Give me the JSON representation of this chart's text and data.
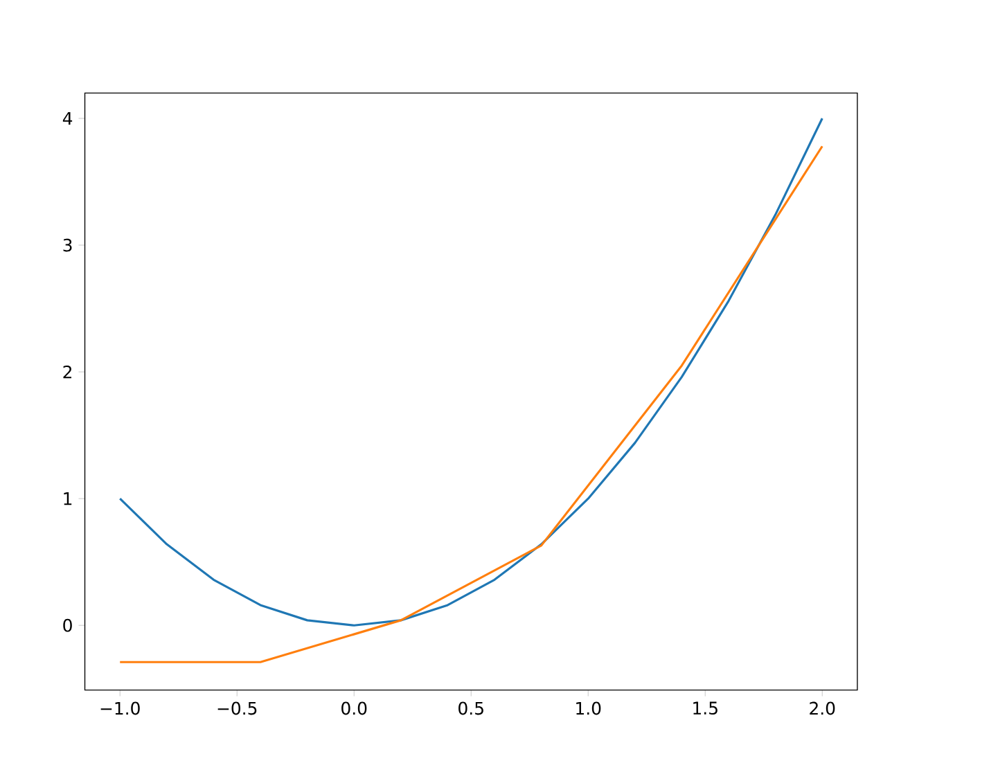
{
  "chart_data": {
    "type": "line",
    "xlim": [
      -1.15,
      2.15
    ],
    "ylim": [
      -0.51,
      4.2
    ],
    "xticks": [
      {
        "value": -1.0,
        "label": "−1.0"
      },
      {
        "value": -0.5,
        "label": "−0.5"
      },
      {
        "value": 0.0,
        "label": "0.0"
      },
      {
        "value": 0.5,
        "label": "0.5"
      },
      {
        "value": 1.0,
        "label": "1.0"
      },
      {
        "value": 1.5,
        "label": "1.5"
      },
      {
        "value": 2.0,
        "label": "2.0"
      }
    ],
    "yticks": [
      0,
      1,
      2,
      3,
      4
    ],
    "series": [
      {
        "color": "#1f77b4",
        "x": [
          -1.0,
          -0.8,
          -0.6,
          -0.4,
          -0.2,
          0.0,
          0.2,
          0.4,
          0.6,
          0.8,
          1.0,
          1.2,
          1.4,
          1.6,
          1.8,
          2.0
        ],
        "values": [
          1.0,
          0.64,
          0.36,
          0.16,
          0.04,
          0.0,
          0.04,
          0.16,
          0.36,
          0.64,
          1.0,
          1.44,
          1.96,
          2.56,
          3.24,
          4.0
        ]
      },
      {
        "color": "#ff7f0e",
        "x": [
          -1.0,
          -0.4,
          0.2,
          0.8,
          1.4,
          2.0
        ],
        "values": [
          -0.29,
          -0.29,
          0.04,
          0.63,
          2.05,
          3.78
        ]
      }
    ]
  }
}
